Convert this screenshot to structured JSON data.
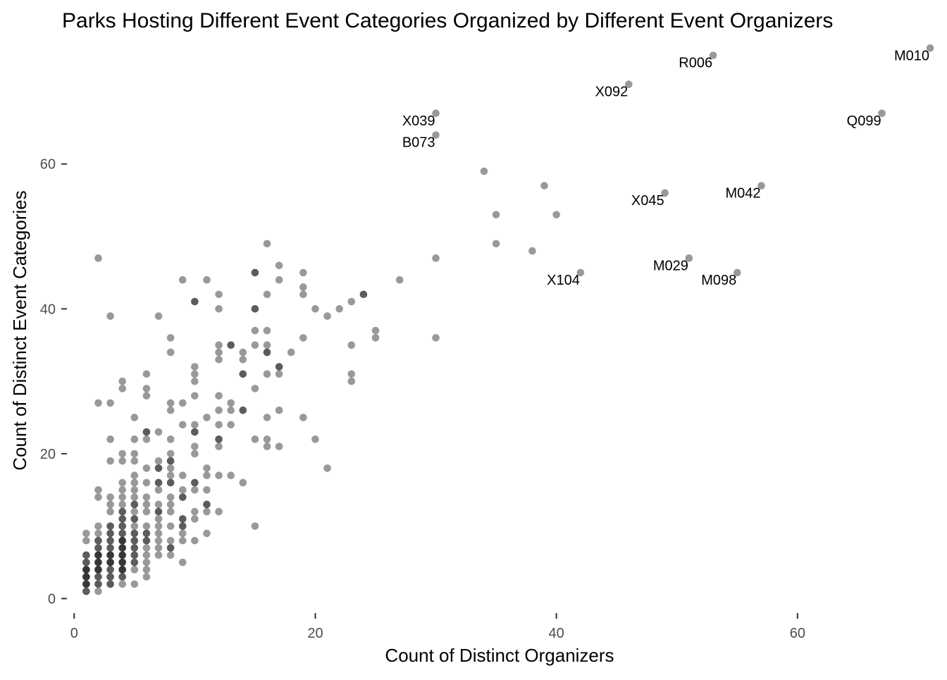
{
  "chart_data": {
    "type": "scatter",
    "title": "Parks Hosting Different Event Categories Organized by Different Event Organizers",
    "xlabel": "Count of Distinct Organizers",
    "ylabel": "Count of Distinct Event Categories",
    "xlim": [
      -0.6,
      72.4
    ],
    "ylim": [
      -2,
      77
    ],
    "x_ticks": [
      0,
      20,
      40,
      60
    ],
    "y_ticks": [
      0,
      20,
      40,
      60
    ],
    "grid": false,
    "point_opacity": 0.4,
    "labeled_points": [
      {
        "label": "M010",
        "x": 71,
        "y": 76
      },
      {
        "label": "R006",
        "x": 53,
        "y": 75
      },
      {
        "label": "X092",
        "x": 46,
        "y": 71
      },
      {
        "label": "X039",
        "x": 30,
        "y": 67
      },
      {
        "label": "Q099",
        "x": 67,
        "y": 67
      },
      {
        "label": "B073",
        "x": 30,
        "y": 64
      },
      {
        "label": "M042",
        "x": 57,
        "y": 57
      },
      {
        "label": "X045",
        "x": 49,
        "y": 56
      },
      {
        "label": "M029",
        "x": 51,
        "y": 47
      },
      {
        "label": "X104",
        "x": 42,
        "y": 45
      },
      {
        "label": "M098",
        "x": 55,
        "y": 45
      }
    ],
    "points": [
      [
        1,
        1
      ],
      [
        1,
        2
      ],
      [
        1,
        3
      ],
      [
        1,
        4
      ],
      [
        1,
        5
      ],
      [
        1,
        6
      ],
      [
        1,
        8
      ],
      [
        1,
        9
      ],
      [
        1,
        1
      ],
      [
        1,
        2
      ],
      [
        1,
        3
      ],
      [
        1,
        4
      ],
      [
        1,
        5
      ],
      [
        1,
        6
      ],
      [
        1,
        2
      ],
      [
        1,
        3
      ],
      [
        1,
        4
      ],
      [
        2,
        1
      ],
      [
        2,
        2
      ],
      [
        2,
        3
      ],
      [
        2,
        4
      ],
      [
        2,
        5
      ],
      [
        2,
        6
      ],
      [
        2,
        7
      ],
      [
        2,
        8
      ],
      [
        2,
        9
      ],
      [
        2,
        10
      ],
      [
        2,
        14
      ],
      [
        2,
        15
      ],
      [
        2,
        27
      ],
      [
        2,
        47
      ],
      [
        2,
        2
      ],
      [
        2,
        3
      ],
      [
        2,
        4
      ],
      [
        2,
        5
      ],
      [
        2,
        6
      ],
      [
        2,
        7
      ],
      [
        2,
        8
      ],
      [
        2,
        4
      ],
      [
        2,
        5
      ],
      [
        2,
        6
      ],
      [
        3,
        2
      ],
      [
        3,
        3
      ],
      [
        3,
        4
      ],
      [
        3,
        5
      ],
      [
        3,
        6
      ],
      [
        3,
        7
      ],
      [
        3,
        8
      ],
      [
        3,
        9
      ],
      [
        3,
        10
      ],
      [
        3,
        12
      ],
      [
        3,
        13
      ],
      [
        3,
        14
      ],
      [
        3,
        19
      ],
      [
        3,
        22
      ],
      [
        3,
        27
      ],
      [
        3,
        39
      ],
      [
        3,
        2
      ],
      [
        3,
        3
      ],
      [
        3,
        4
      ],
      [
        3,
        5
      ],
      [
        3,
        6
      ],
      [
        3,
        7
      ],
      [
        3,
        8
      ],
      [
        3,
        9
      ],
      [
        3,
        10
      ],
      [
        3,
        5
      ],
      [
        3,
        6
      ],
      [
        4,
        2
      ],
      [
        4,
        3
      ],
      [
        4,
        4
      ],
      [
        4,
        5
      ],
      [
        4,
        6
      ],
      [
        4,
        7
      ],
      [
        4,
        8
      ],
      [
        4,
        9
      ],
      [
        4,
        10
      ],
      [
        4,
        11
      ],
      [
        4,
        12
      ],
      [
        4,
        13
      ],
      [
        4,
        14
      ],
      [
        4,
        15
      ],
      [
        4,
        16
      ],
      [
        4,
        19
      ],
      [
        4,
        20
      ],
      [
        4,
        29
      ],
      [
        4,
        30
      ],
      [
        4,
        3
      ],
      [
        4,
        4
      ],
      [
        4,
        5
      ],
      [
        4,
        6
      ],
      [
        4,
        7
      ],
      [
        4,
        8
      ],
      [
        4,
        9
      ],
      [
        4,
        10
      ],
      [
        4,
        11
      ],
      [
        4,
        12
      ],
      [
        4,
        4
      ],
      [
        4,
        5
      ],
      [
        4,
        6
      ],
      [
        4,
        7
      ],
      [
        4,
        8
      ],
      [
        5,
        2
      ],
      [
        5,
        4
      ],
      [
        5,
        5
      ],
      [
        5,
        6
      ],
      [
        5,
        7
      ],
      [
        5,
        8
      ],
      [
        5,
        9
      ],
      [
        5,
        10
      ],
      [
        5,
        11
      ],
      [
        5,
        12
      ],
      [
        5,
        13
      ],
      [
        5,
        14
      ],
      [
        5,
        15
      ],
      [
        5,
        16
      ],
      [
        5,
        17
      ],
      [
        5,
        19
      ],
      [
        5,
        20
      ],
      [
        5,
        22
      ],
      [
        5,
        25
      ],
      [
        5,
        5
      ],
      [
        5,
        6
      ],
      [
        5,
        7
      ],
      [
        5,
        8
      ],
      [
        5,
        9
      ],
      [
        5,
        11
      ],
      [
        5,
        13
      ],
      [
        6,
        3
      ],
      [
        6,
        4
      ],
      [
        6,
        5
      ],
      [
        6,
        6
      ],
      [
        6,
        7
      ],
      [
        6,
        8
      ],
      [
        6,
        9
      ],
      [
        6,
        10
      ],
      [
        6,
        12
      ],
      [
        6,
        13
      ],
      [
        6,
        14
      ],
      [
        6,
        16
      ],
      [
        6,
        18
      ],
      [
        6,
        22
      ],
      [
        6,
        23
      ],
      [
        6,
        28
      ],
      [
        6,
        29
      ],
      [
        6,
        31
      ],
      [
        6,
        8
      ],
      [
        6,
        9
      ],
      [
        6,
        23
      ],
      [
        7,
        6
      ],
      [
        7,
        7
      ],
      [
        7,
        8
      ],
      [
        7,
        9
      ],
      [
        7,
        10
      ],
      [
        7,
        11
      ],
      [
        7,
        12
      ],
      [
        7,
        13
      ],
      [
        7,
        15
      ],
      [
        7,
        16
      ],
      [
        7,
        18
      ],
      [
        7,
        19
      ],
      [
        7,
        23
      ],
      [
        7,
        39
      ],
      [
        7,
        12
      ],
      [
        7,
        16
      ],
      [
        7,
        18
      ],
      [
        8,
        6
      ],
      [
        8,
        7
      ],
      [
        8,
        8
      ],
      [
        8,
        10
      ],
      [
        8,
        12
      ],
      [
        8,
        13
      ],
      [
        8,
        14
      ],
      [
        8,
        16
      ],
      [
        8,
        17
      ],
      [
        8,
        18
      ],
      [
        8,
        19
      ],
      [
        8,
        20
      ],
      [
        8,
        22
      ],
      [
        8,
        26
      ],
      [
        8,
        27
      ],
      [
        8,
        34
      ],
      [
        8,
        36
      ],
      [
        8,
        7
      ],
      [
        8,
        16
      ],
      [
        8,
        19
      ],
      [
        9,
        5
      ],
      [
        9,
        8
      ],
      [
        9,
        9
      ],
      [
        9,
        10
      ],
      [
        9,
        11
      ],
      [
        9,
        14
      ],
      [
        9,
        15
      ],
      [
        9,
        17
      ],
      [
        9,
        24
      ],
      [
        9,
        27
      ],
      [
        9,
        44
      ],
      [
        9,
        10
      ],
      [
        9,
        11
      ],
      [
        9,
        14
      ],
      [
        10,
        8
      ],
      [
        10,
        11
      ],
      [
        10,
        12
      ],
      [
        10,
        15
      ],
      [
        10,
        16
      ],
      [
        10,
        20
      ],
      [
        10,
        21
      ],
      [
        10,
        23
      ],
      [
        10,
        24
      ],
      [
        10,
        28
      ],
      [
        10,
        30
      ],
      [
        10,
        31
      ],
      [
        10,
        32
      ],
      [
        10,
        41
      ],
      [
        10,
        16
      ],
      [
        10,
        23
      ],
      [
        10,
        41
      ],
      [
        11,
        9
      ],
      [
        11,
        12
      ],
      [
        11,
        13
      ],
      [
        11,
        15
      ],
      [
        11,
        17
      ],
      [
        11,
        18
      ],
      [
        11,
        25
      ],
      [
        11,
        44
      ],
      [
        11,
        13
      ],
      [
        12,
        12
      ],
      [
        12,
        17
      ],
      [
        12,
        21
      ],
      [
        12,
        22
      ],
      [
        12,
        24
      ],
      [
        12,
        26
      ],
      [
        12,
        28
      ],
      [
        12,
        33
      ],
      [
        12,
        34
      ],
      [
        12,
        35
      ],
      [
        12,
        40
      ],
      [
        12,
        42
      ],
      [
        12,
        22
      ],
      [
        13,
        17
      ],
      [
        13,
        24
      ],
      [
        13,
        26
      ],
      [
        13,
        27
      ],
      [
        13,
        35
      ],
      [
        13,
        35
      ],
      [
        14,
        16
      ],
      [
        14,
        26
      ],
      [
        14,
        31
      ],
      [
        14,
        33
      ],
      [
        14,
        34
      ],
      [
        14,
        26
      ],
      [
        14,
        31
      ],
      [
        15,
        10
      ],
      [
        15,
        22
      ],
      [
        15,
        29
      ],
      [
        15,
        35
      ],
      [
        15,
        37
      ],
      [
        15,
        40
      ],
      [
        15,
        45
      ],
      [
        15,
        40
      ],
      [
        15,
        45
      ],
      [
        16,
        21
      ],
      [
        16,
        22
      ],
      [
        16,
        25
      ],
      [
        16,
        31
      ],
      [
        16,
        34
      ],
      [
        16,
        35
      ],
      [
        16,
        37
      ],
      [
        16,
        42
      ],
      [
        16,
        49
      ],
      [
        16,
        34
      ],
      [
        17,
        21
      ],
      [
        17,
        26
      ],
      [
        17,
        31
      ],
      [
        17,
        32
      ],
      [
        17,
        44
      ],
      [
        17,
        46
      ],
      [
        17,
        32
      ],
      [
        18,
        34
      ],
      [
        19,
        25
      ],
      [
        19,
        36
      ],
      [
        19,
        42
      ],
      [
        19,
        43
      ],
      [
        19,
        45
      ],
      [
        20,
        22
      ],
      [
        20,
        40
      ],
      [
        21,
        18
      ],
      [
        21,
        39
      ],
      [
        22,
        40
      ],
      [
        23,
        30
      ],
      [
        23,
        31
      ],
      [
        23,
        35
      ],
      [
        23,
        41
      ],
      [
        24,
        42
      ],
      [
        24,
        42
      ],
      [
        25,
        36
      ],
      [
        25,
        37
      ],
      [
        27,
        44
      ],
      [
        30,
        36
      ],
      [
        30,
        47
      ],
      [
        30,
        67
      ],
      [
        30,
        64
      ],
      [
        34,
        59
      ],
      [
        35,
        49
      ],
      [
        35,
        53
      ],
      [
        38,
        48
      ],
      [
        39,
        57
      ],
      [
        40,
        53
      ],
      [
        42,
        45
      ],
      [
        46,
        71
      ],
      [
        49,
        56
      ],
      [
        51,
        47
      ],
      [
        53,
        75
      ],
      [
        55,
        45
      ],
      [
        57,
        57
      ],
      [
        67,
        67
      ],
      [
        71,
        76
      ]
    ]
  }
}
